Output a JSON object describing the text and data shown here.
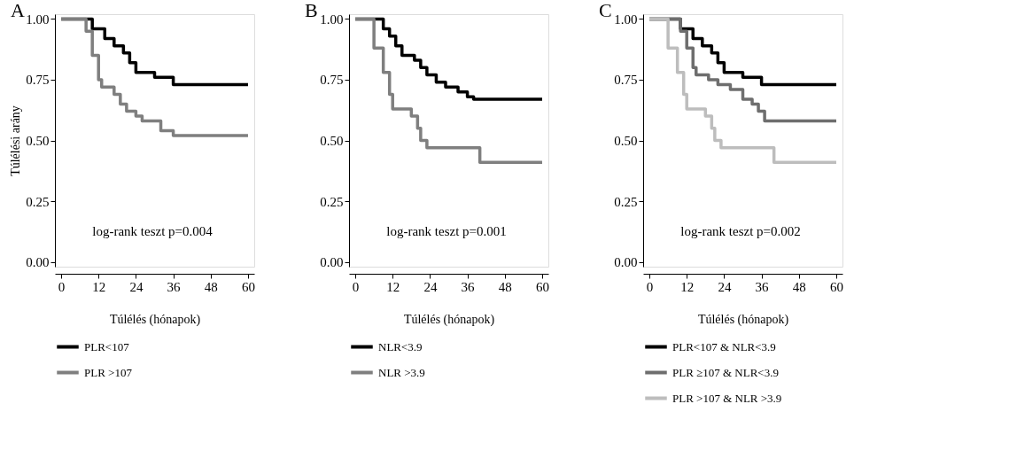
{
  "chart_data": [
    {
      "type": "step",
      "title": "A",
      "ylabel": "Túlélési arány",
      "xlabel": "Túlélés (hónapok)",
      "xlim": [
        -2,
        62
      ],
      "xticks": [
        0,
        12,
        24,
        36,
        48,
        60
      ],
      "ylim": [
        -0.02,
        1.02
      ],
      "yticks": [
        {
          "value": 0,
          "label": "0.00"
        },
        {
          "value": 0.25,
          "label": "0.25"
        },
        {
          "value": 0.5,
          "label": "0.50"
        },
        {
          "value": 0.75,
          "label": "0.75"
        },
        {
          "value": 1,
          "label": "1.00"
        }
      ],
      "grid": false,
      "legend": "bottom",
      "annotations": [
        "log-rank teszt p=0.004"
      ],
      "series": [
        {
          "name": "PLR<107",
          "color": "#000000",
          "x": [
            0,
            9,
            10,
            14,
            17,
            20,
            22,
            24,
            30,
            36,
            60
          ],
          "values": [
            1,
            1,
            0.96,
            0.92,
            0.89,
            0.86,
            0.82,
            0.78,
            0.76,
            0.73,
            0.73
          ]
        },
        {
          "name": "PLR >107",
          "color": "#7f7f7f",
          "x": [
            0,
            6,
            8,
            10,
            12,
            13,
            17,
            19,
            21,
            24,
            26,
            32,
            36,
            60
          ],
          "values": [
            1,
            1,
            0.95,
            0.85,
            0.75,
            0.72,
            0.69,
            0.65,
            0.62,
            0.6,
            0.58,
            0.54,
            0.52,
            0.52
          ]
        }
      ]
    },
    {
      "type": "step",
      "title": "B",
      "xlabel": "Túlélés (hónapok)",
      "xlim": [
        -2,
        62
      ],
      "xticks": [
        0,
        12,
        24,
        36,
        48,
        60
      ],
      "ylim": [
        -0.02,
        1.02
      ],
      "yticks": [
        {
          "value": 0,
          "label": "0.00"
        },
        {
          "value": 0.25,
          "label": "0.25"
        },
        {
          "value": 0.5,
          "label": "0.50"
        },
        {
          "value": 0.75,
          "label": "0.75"
        },
        {
          "value": 1,
          "label": "1.00"
        }
      ],
      "grid": false,
      "legend": "bottom",
      "annotations": [
        "log-rank teszt p=0.001"
      ],
      "series": [
        {
          "name": "NLR<3.9",
          "color": "#000000",
          "x": [
            0,
            7,
            9,
            11,
            13,
            15,
            19,
            21,
            23,
            26,
            29,
            33,
            36,
            38,
            60
          ],
          "values": [
            1,
            1,
            0.96,
            0.93,
            0.89,
            0.85,
            0.83,
            0.8,
            0.77,
            0.74,
            0.72,
            0.7,
            0.68,
            0.67,
            0.67
          ]
        },
        {
          "name": "NLR >3.9",
          "color": "#7f7f7f",
          "x": [
            0,
            5,
            6,
            9,
            11,
            12,
            18,
            20,
            21,
            23,
            40,
            60
          ],
          "values": [
            1,
            1,
            0.88,
            0.78,
            0.69,
            0.63,
            0.6,
            0.55,
            0.5,
            0.47,
            0.41,
            0.41
          ]
        }
      ]
    },
    {
      "type": "step",
      "title": "C",
      "xlabel": "Túlélés (hónapok)",
      "xlim": [
        -2,
        62
      ],
      "xticks": [
        0,
        12,
        24,
        36,
        48,
        60
      ],
      "ylim": [
        -0.02,
        1.02
      ],
      "yticks": [
        {
          "value": 0,
          "label": "0.00"
        },
        {
          "value": 0.25,
          "label": "0.25"
        },
        {
          "value": 0.5,
          "label": "0.50"
        },
        {
          "value": 0.75,
          "label": "0.75"
        },
        {
          "value": 1,
          "label": "1.00"
        }
      ],
      "grid": false,
      "legend": "bottom",
      "annotations": [
        "log-rank teszt p=0.002"
      ],
      "series": [
        {
          "name": "PLR<107 & NLR<3.9",
          "color": "#000000",
          "x": [
            0,
            9,
            10,
            14,
            17,
            20,
            22,
            24,
            30,
            36,
            60
          ],
          "values": [
            1,
            1,
            0.96,
            0.92,
            0.89,
            0.86,
            0.82,
            0.78,
            0.76,
            0.73,
            0.73
          ]
        },
        {
          "name": "PLR ≥107 & NLR<3.9",
          "color": "#6e6e6e",
          "x": [
            0,
            7,
            10,
            12,
            14,
            15,
            19,
            22,
            26,
            30,
            33,
            35,
            37,
            60
          ],
          "values": [
            1,
            1,
            0.95,
            0.88,
            0.8,
            0.77,
            0.75,
            0.73,
            0.71,
            0.67,
            0.65,
            0.62,
            0.58,
            0.58
          ]
        },
        {
          "name": "PLR >107 & NLR  >3.9",
          "color": "#bdbdbd",
          "x": [
            0,
            5,
            6,
            9,
            11,
            12,
            18,
            20,
            21,
            23,
            40,
            60
          ],
          "values": [
            1,
            1,
            0.88,
            0.78,
            0.69,
            0.63,
            0.6,
            0.55,
            0.5,
            0.47,
            0.41,
            0.41
          ]
        }
      ]
    }
  ]
}
